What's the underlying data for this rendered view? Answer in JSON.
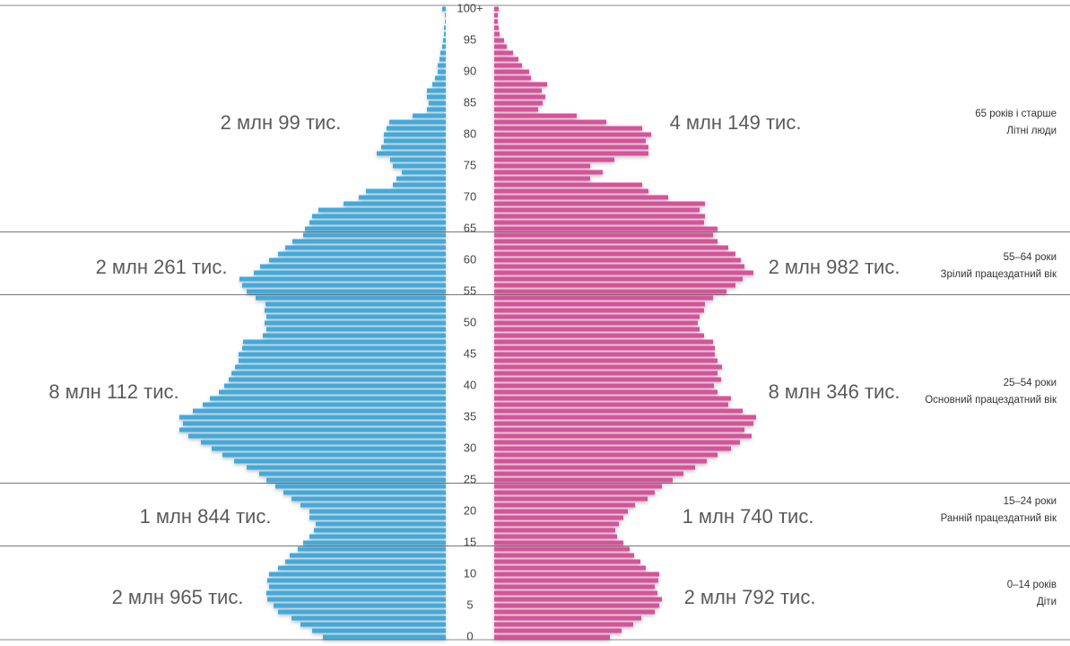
{
  "chart_data": {
    "type": "population-pyramid",
    "categories": [
      "0",
      null,
      null,
      null,
      null,
      "5",
      null,
      null,
      null,
      null,
      "10",
      null,
      null,
      null,
      null,
      "15",
      null,
      null,
      null,
      null,
      "20",
      null,
      null,
      null,
      null,
      "25",
      null,
      null,
      null,
      null,
      "30",
      null,
      null,
      null,
      null,
      "35",
      null,
      null,
      null,
      null,
      "40",
      null,
      null,
      null,
      null,
      "45",
      null,
      null,
      null,
      null,
      "50",
      null,
      null,
      null,
      null,
      "55",
      null,
      null,
      null,
      null,
      "60",
      null,
      null,
      null,
      null,
      "65",
      null,
      null,
      null,
      null,
      "70",
      null,
      null,
      null,
      null,
      "75",
      null,
      null,
      null,
      null,
      "80",
      null,
      null,
      null,
      null,
      "85",
      null,
      null,
      null,
      null,
      "90",
      null,
      null,
      null,
      null,
      "95",
      null,
      null,
      null,
      null,
      "100+"
    ],
    "series": [
      {
        "color": "#41aadd",
        "values": [
          137,
          149,
          162,
          172,
          187,
          192,
          199,
          200,
          197,
          199,
          197,
          187,
          179,
          174,
          165,
          159,
          152,
          147,
          145,
          152,
          152,
          162,
          172,
          181,
          190,
          200,
          208,
          222,
          236,
          249,
          261,
          273,
          287,
          297,
          293,
          297,
          282,
          271,
          263,
          253,
          247,
          242,
          239,
          235,
          231,
          231,
          227,
          226,
          204,
          200,
          202,
          200,
          202,
          201,
          212,
          222,
          227,
          230,
          214,
          207,
          197,
          187,
          179,
          171,
          159,
          157,
          152,
          149,
          142,
          114,
          97,
          89,
          59,
          55,
          49,
          59,
          62,
          77,
          72,
          69,
          69,
          66,
          63,
          37,
          21,
          19,
          21,
          21,
          15,
          12,
          9,
          9,
          7,
          6,
          4,
          3,
          2,
          2,
          1,
          1,
          4
        ]
      },
      {
        "color": "#d9519b",
        "values": [
          129,
          142,
          155,
          164,
          179,
          184,
          187,
          182,
          179,
          183,
          184,
          169,
          163,
          156,
          151,
          144,
          137,
          135,
          139,
          144,
          149,
          157,
          171,
          179,
          187,
          199,
          211,
          224,
          237,
          249,
          264,
          274,
          287,
          279,
          289,
          292,
          277,
          261,
          264,
          249,
          245,
          253,
          249,
          254,
          249,
          246,
          246,
          244,
          234,
          229,
          227,
          229,
          234,
          235,
          244,
          259,
          269,
          277,
          289,
          279,
          275,
          269,
          261,
          249,
          244,
          249,
          234,
          235,
          229,
          235,
          194,
          172,
          165,
          107,
          121,
          107,
          134,
          172,
          172,
          169,
          175,
          165,
          125,
          92,
          49,
          54,
          57,
          53,
          59,
          41,
          39,
          31,
          27,
          21,
          14,
          11,
          6,
          5,
          4,
          4,
          5
        ]
      }
    ],
    "groups": [
      {
        "from": 0,
        "range": "0–14 років",
        "name": "Діти",
        "left_total": "2 млн 965 тис.",
        "right_total": "2 млн 792 тис."
      },
      {
        "from": 15,
        "range": "15–24 роки",
        "name": "Ранній працездатний вік",
        "left_total": "1 млн 844 тис.",
        "right_total": "1 млн 740 тис."
      },
      {
        "from": 25,
        "range": "25–54 роки",
        "name": "Основний працездатний вік",
        "left_total": "8 млн 112 тис.",
        "right_total": "8 млн 346 тис."
      },
      {
        "from": 55,
        "range": "55–64 роки",
        "name": "Зрілий працездатний вік",
        "left_total": "2 млн 261 тис.",
        "right_total": "2 млн 982 тис."
      },
      {
        "from": 65,
        "range": "65 років і старше",
        "name": "Літні люди",
        "left_total": "2 млн 99 тис.",
        "right_total": "4 млн 149 тис."
      }
    ]
  }
}
